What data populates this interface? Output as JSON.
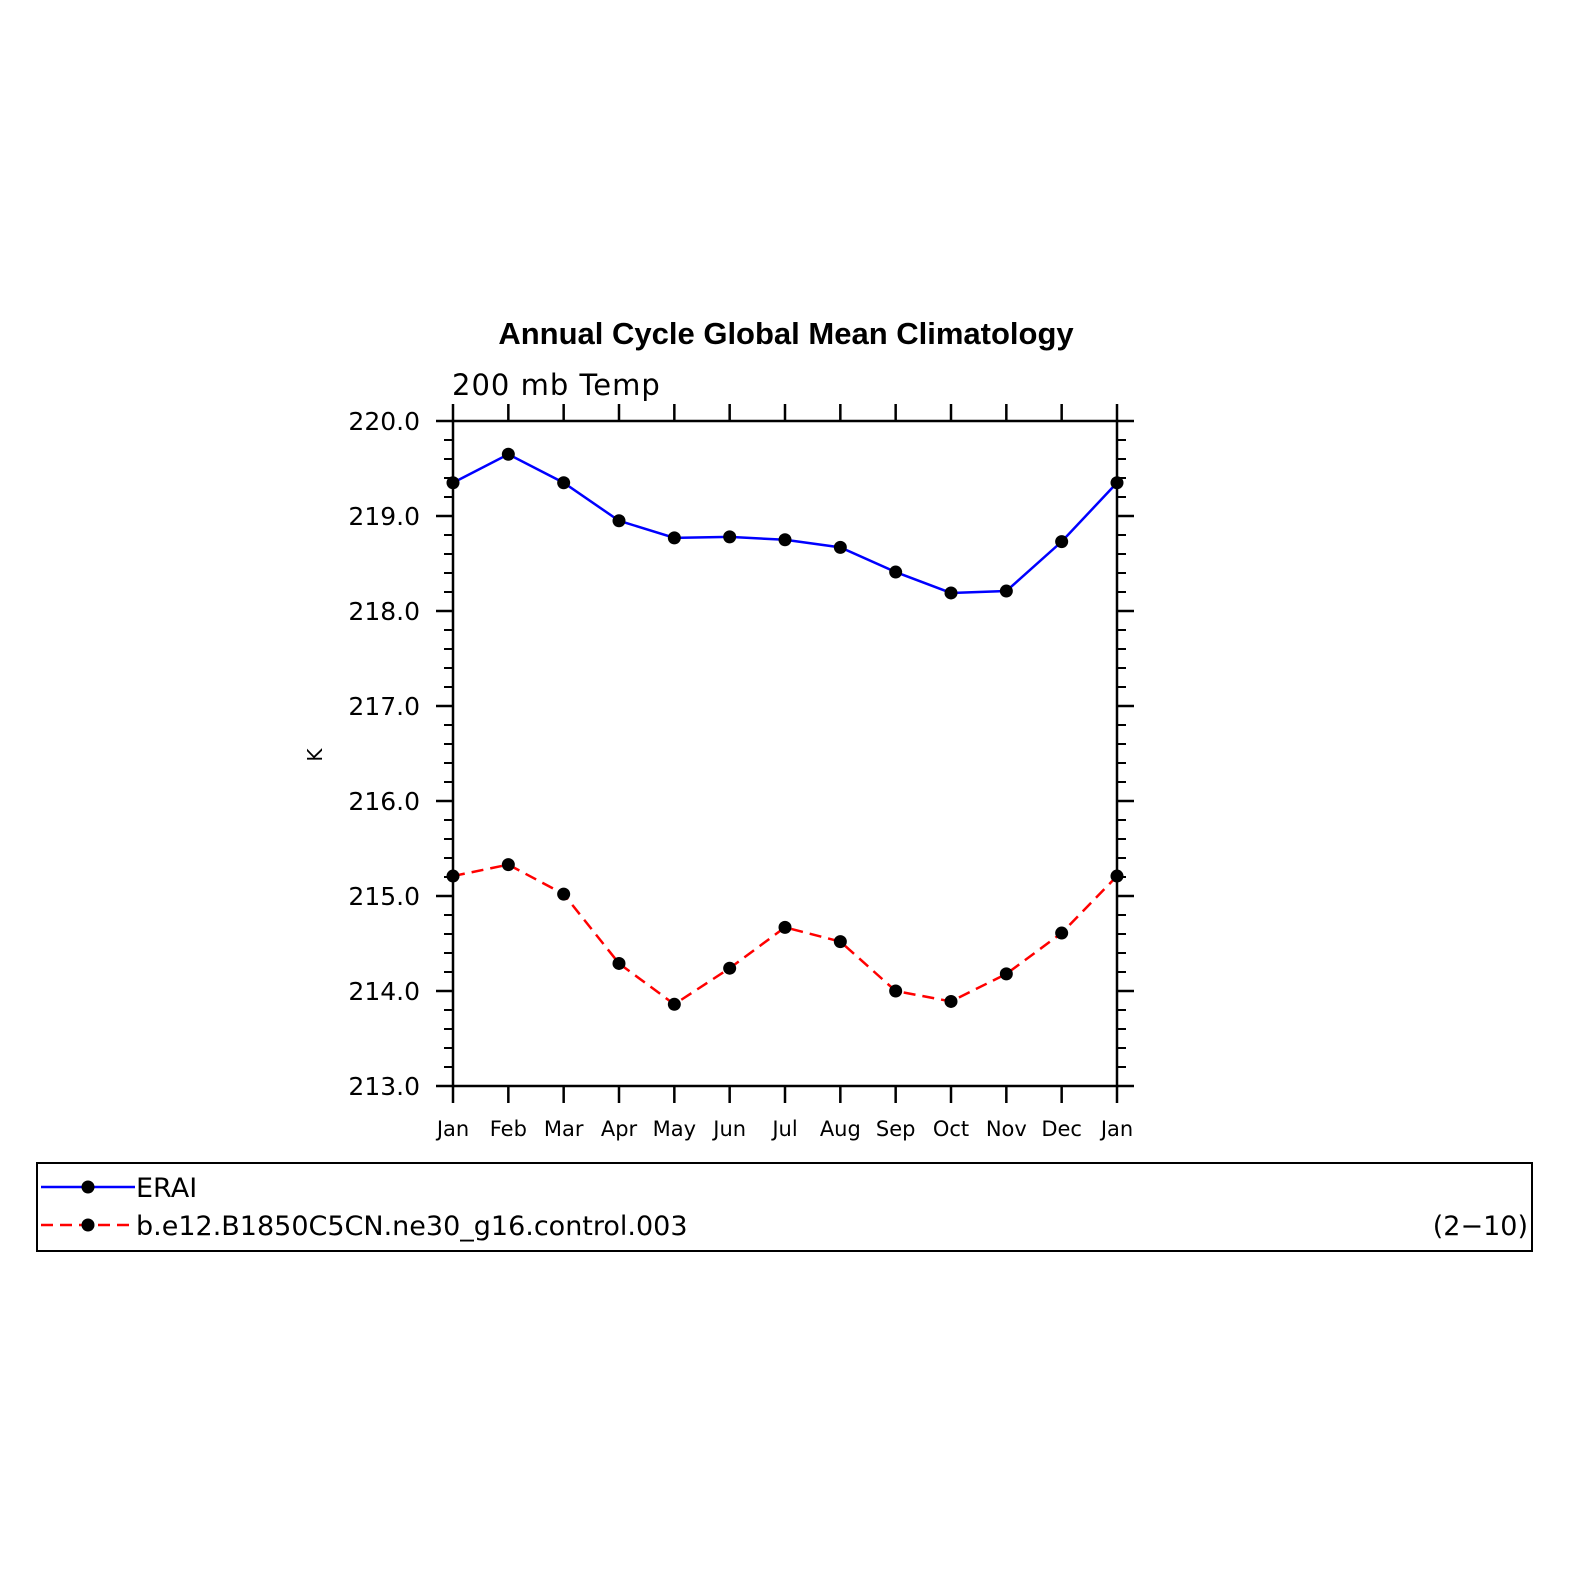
{
  "chart_data": {
    "type": "line",
    "title": "Annual Cycle Global Mean Climatology",
    "subtitle": "200 mb Temp",
    "xlabel": "",
    "ylabel": "K",
    "categories": [
      "Jan",
      "Feb",
      "Mar",
      "Apr",
      "May",
      "Jun",
      "Jul",
      "Aug",
      "Sep",
      "Oct",
      "Nov",
      "Dec",
      "Jan"
    ],
    "ylim": [
      213.0,
      220.0
    ],
    "yticks": [
      "213.0",
      "214.0",
      "215.0",
      "216.0",
      "217.0",
      "218.0",
      "219.0",
      "220.0"
    ],
    "grid": false,
    "legend_position": "bottom",
    "series": [
      {
        "name": "ERAI",
        "color": "#0000ff",
        "dash": "solid",
        "marker": "filled-circle",
        "values": [
          219.35,
          219.65,
          219.35,
          218.95,
          218.77,
          218.78,
          218.75,
          218.67,
          218.41,
          218.19,
          218.21,
          218.73,
          219.35
        ]
      },
      {
        "name": "b.e12.B1850C5CN.ne30_g16.control.003",
        "color": "#ff0000",
        "dash": "dashed",
        "marker": "filled-circle",
        "values": [
          215.21,
          215.33,
          215.02,
          214.29,
          213.86,
          214.24,
          214.67,
          214.52,
          214.0,
          213.89,
          214.18,
          214.61,
          215.21
        ]
      }
    ],
    "legend_note": "(2−10)"
  }
}
